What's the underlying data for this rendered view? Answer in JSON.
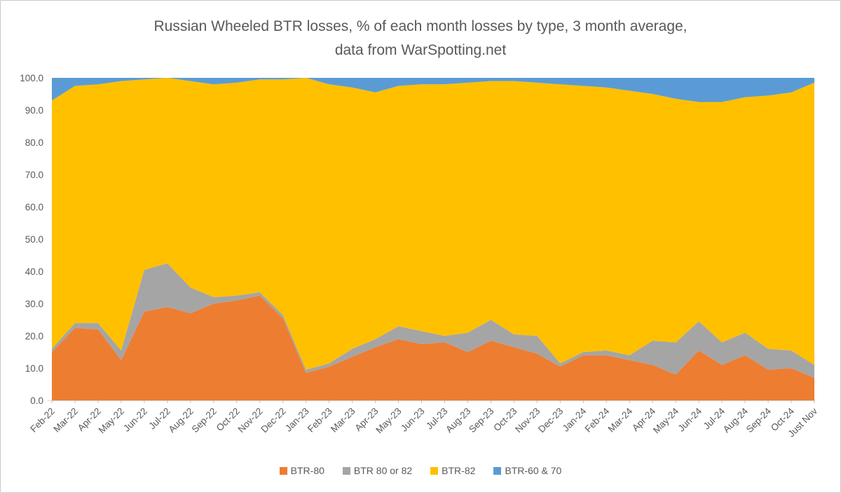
{
  "title": {
    "line1": "Russian Wheeled BTR losses, % of each month losses by type, 3 month average,",
    "line2": "data from WarSpotting.net"
  },
  "colors": {
    "text": "#595959",
    "axis_line": "#D9D9D9",
    "tick": "#BFBFBF",
    "background": "#FFFFFF"
  },
  "chart_data": {
    "type": "area",
    "stacked": true,
    "percent_stacked": true,
    "title": "Russian Wheeled BTR losses, % of each month losses by type, 3 month average, data from WarSpotting.net",
    "xlabel": "",
    "ylabel": "",
    "ylim": [
      0,
      100
    ],
    "grid": false,
    "legend_position": "bottom",
    "y_ticks": [
      "100.0",
      "90.0",
      "80.0",
      "70.0",
      "60.0",
      "50.0",
      "40.0",
      "30.0",
      "20.0",
      "10.0",
      "0.0"
    ],
    "categories": [
      "Feb-22",
      "Mar-22",
      "Apr-22",
      "May-22",
      "Jun-22",
      "Jul-22",
      "Aug-22",
      "Sep-22",
      "Oct-22",
      "Nov-22",
      "Dec-22",
      "Jan-23",
      "Feb-23",
      "Mar-23",
      "Apr-23",
      "May-23",
      "Jun-23",
      "Jul-23",
      "Aug-23",
      "Sep-23",
      "Oct-23",
      "Nov-23",
      "Dec-23",
      "Jan-24",
      "Feb-24",
      "Mar-24",
      "Apr-24",
      "May-24",
      "Jun-24",
      "Jul-24",
      "Aug-24",
      "Sep-24",
      "Oct-24",
      "Just Nov"
    ],
    "series": [
      {
        "name": "BTR-80",
        "color": "#ED7D31",
        "values": [
          15,
          22.5,
          22,
          12.5,
          27.5,
          29,
          27,
          30,
          31,
          32.5,
          25.5,
          8.5,
          10.5,
          13.5,
          16.5,
          19,
          17.5,
          18,
          15,
          18.5,
          16.5,
          14.5,
          10.5,
          14,
          14,
          12.5,
          11,
          8,
          15.5,
          11,
          14,
          9.5,
          10,
          7
        ]
      },
      {
        "name": "BTR 80 or 82",
        "color": "#A5A5A5",
        "values": [
          1,
          1.5,
          2,
          3,
          13,
          13.5,
          8,
          2,
          1.5,
          1,
          1,
          1,
          1,
          2.5,
          2.5,
          4,
          4,
          2,
          6,
          6.5,
          4,
          5.5,
          1,
          1,
          1.5,
          1.5,
          7.5,
          10,
          9,
          7,
          7,
          6.5,
          5.5,
          4
        ]
      },
      {
        "name": "BTR-82",
        "color": "#FFC000",
        "values": [
          77,
          73.5,
          74,
          83.5,
          59,
          57.5,
          64,
          66,
          66,
          66,
          73,
          90.5,
          86.5,
          81,
          76.5,
          74.5,
          76.5,
          78,
          77.5,
          74,
          78.5,
          78.5,
          86.5,
          82.5,
          81.5,
          82,
          76.5,
          75.5,
          68,
          74.5,
          73,
          78.5,
          80,
          87.5
        ]
      },
      {
        "name": "BTR-60 & 70",
        "color": "#5B9BD5",
        "values": [
          7,
          2.5,
          2,
          1,
          0.5,
          0,
          1,
          2,
          1.5,
          0.5,
          0.5,
          0,
          2,
          3,
          4.5,
          2.5,
          2,
          2,
          1.5,
          1,
          1,
          1.5,
          2,
          2.5,
          3,
          4,
          5,
          6.5,
          7.5,
          7.5,
          6,
          5.5,
          4.5,
          1.5
        ]
      }
    ]
  }
}
